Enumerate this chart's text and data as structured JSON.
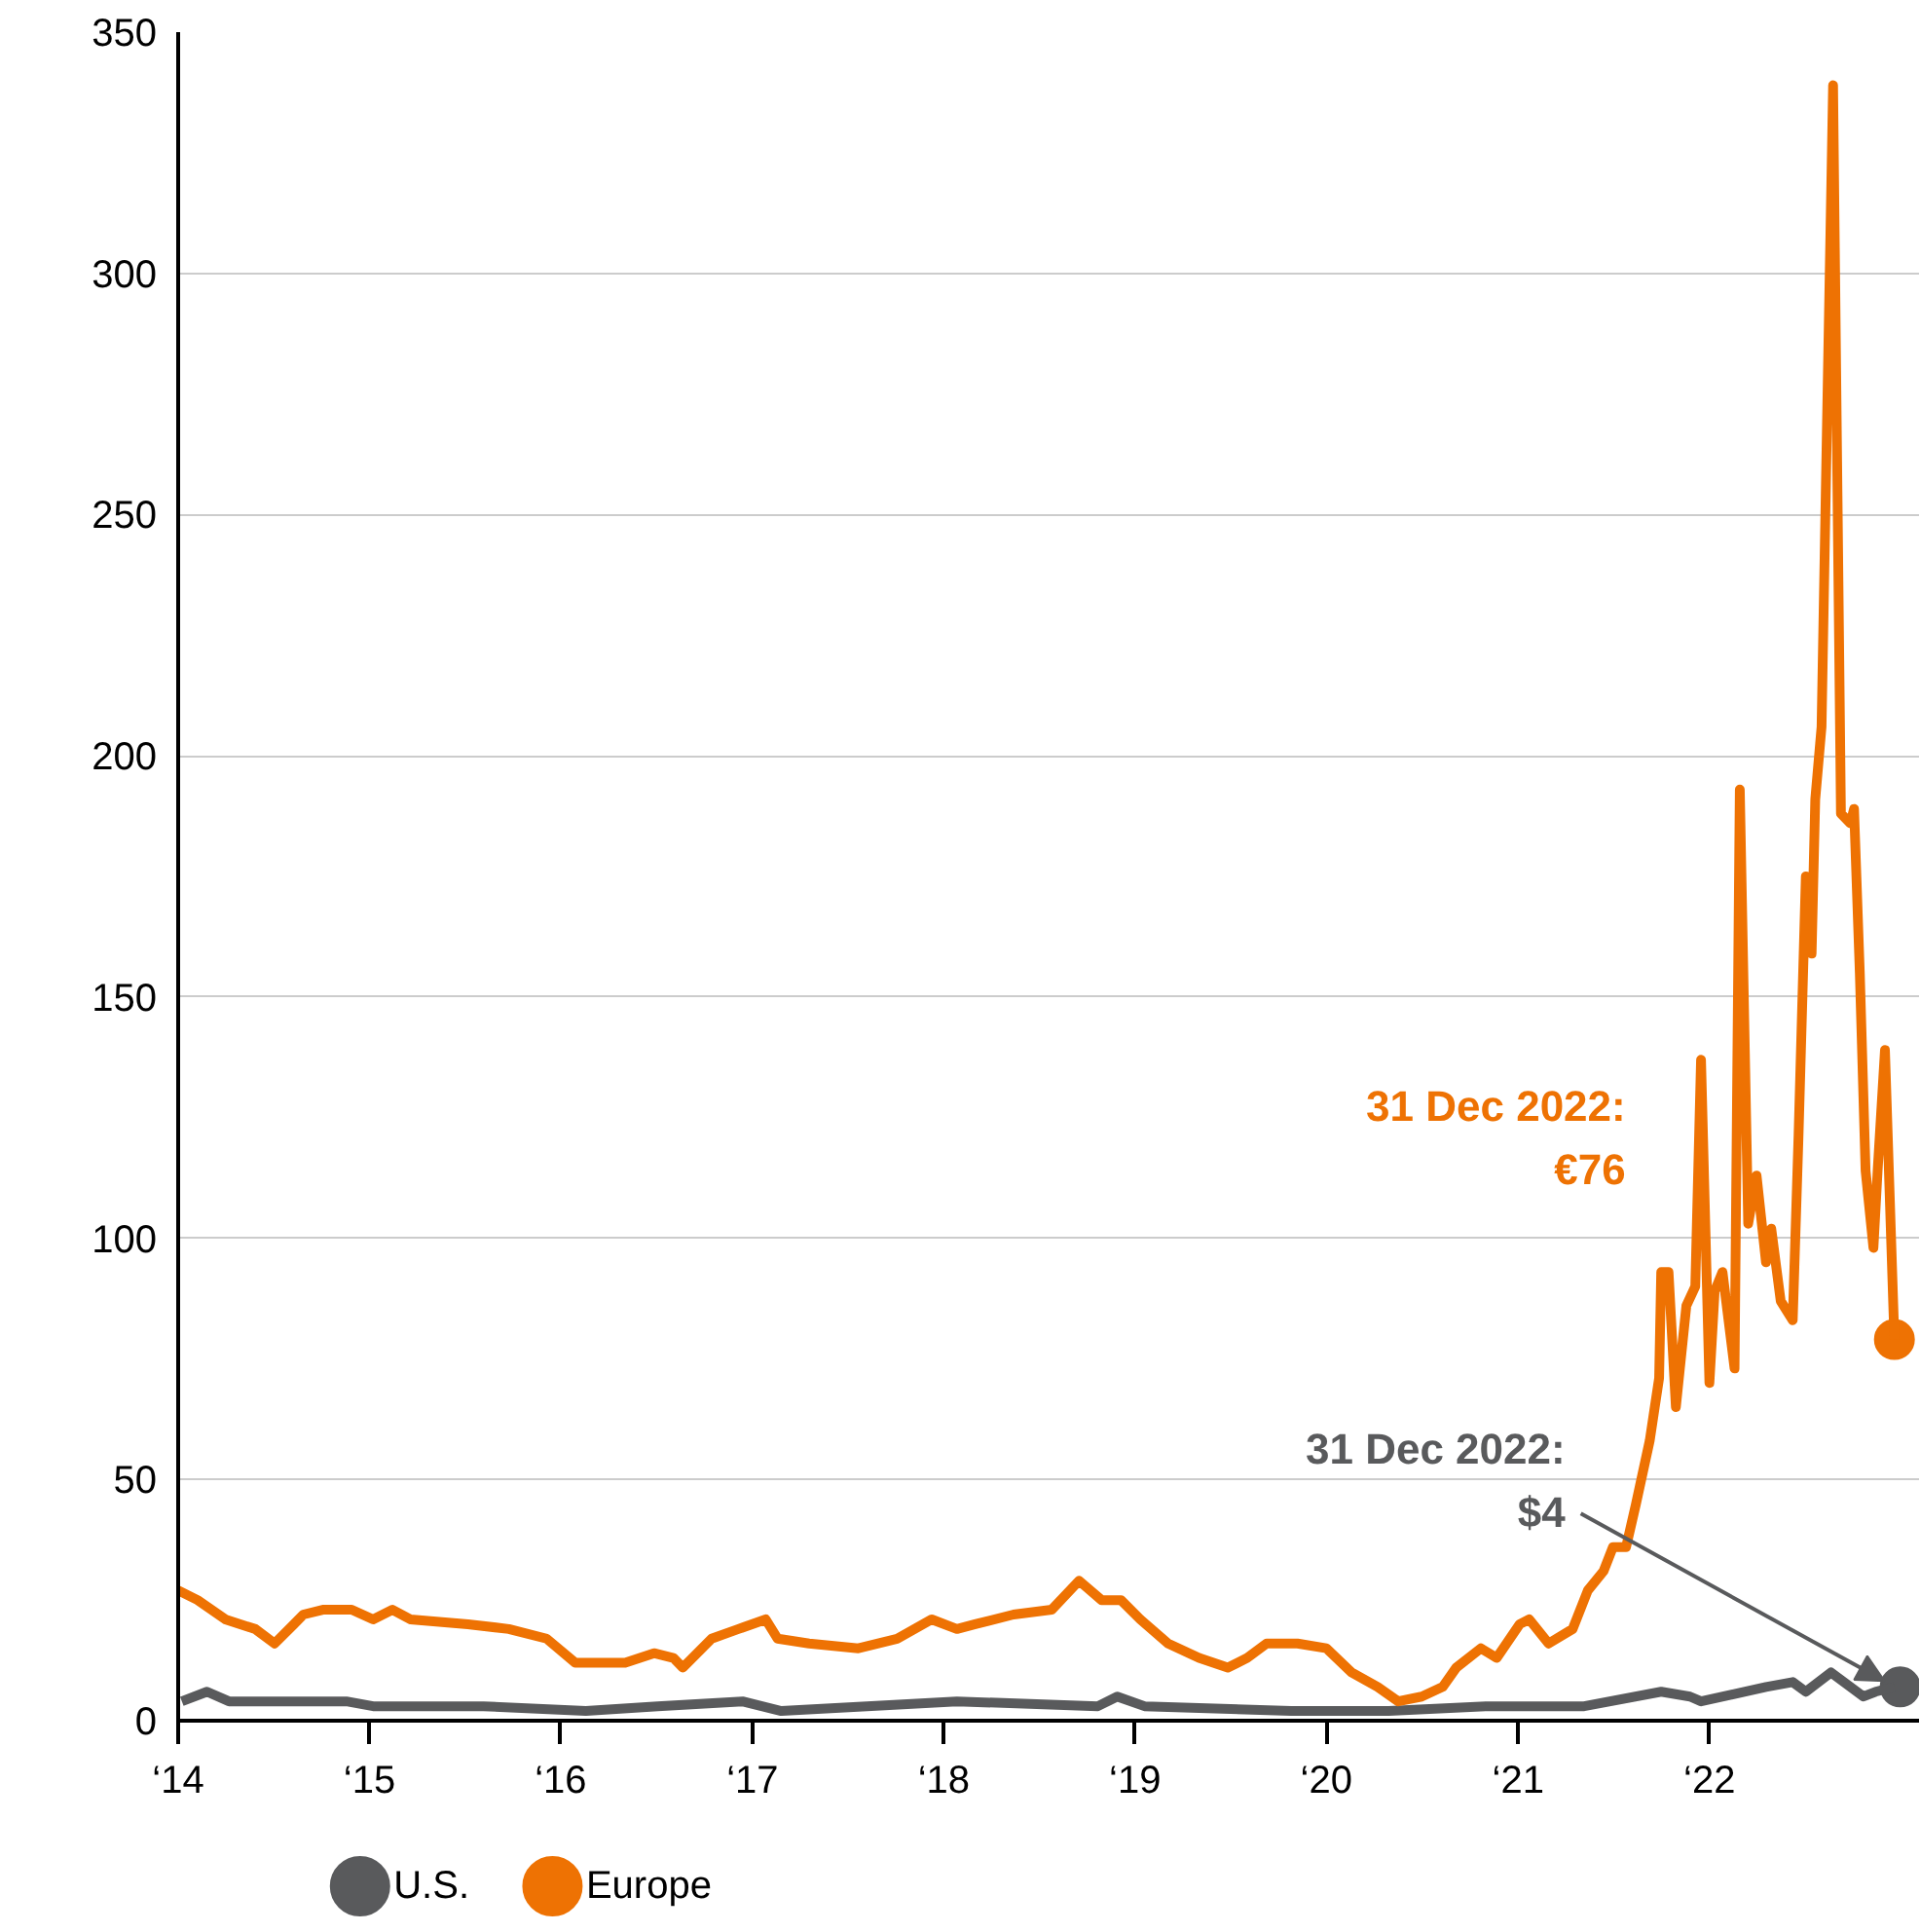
{
  "chart_data": {
    "type": "line",
    "xlim": [
      "2014-01-01",
      "2023-02-05"
    ],
    "xticks": [
      {
        "value": "2014",
        "label": "‘14"
      },
      {
        "value": "2015",
        "label": "‘15"
      },
      {
        "value": "2016",
        "label": "‘16"
      },
      {
        "value": "2017",
        "label": "‘17"
      },
      {
        "value": "2018",
        "label": "‘18"
      },
      {
        "value": "2019",
        "label": "‘19"
      },
      {
        "value": "2020",
        "label": "‘20"
      },
      {
        "value": "2021",
        "label": "‘21"
      },
      {
        "value": "2022",
        "label": "‘22"
      }
    ],
    "ylim": [
      0,
      350
    ],
    "yticks": [
      0,
      50,
      100,
      150,
      200,
      250,
      300,
      350
    ],
    "grid": "y",
    "legend": "bottom left",
    "line_style": "solid",
    "series": [
      {
        "name": "U.S.",
        "color": "#595a5c",
        "x": [
          "2014-01-08",
          "2014-02-25",
          "2014-04-08",
          "2014-07-30",
          "2014-11-18",
          "2015-01-08",
          "2015-08-07",
          "2016-02-18",
          "2016-07-04",
          "2016-12-13",
          "2017-02-25",
          "2018-01-26",
          "2018-10-22",
          "2018-11-28",
          "2019-01-19",
          "2019-10-26",
          "2020-03-02",
          "2020-04-29",
          "2020-11-03",
          "2021-05-07",
          "2021-10-01",
          "2021-11-25",
          "2021-12-16",
          "2022-04-19",
          "2022-06-09",
          "2022-07-04",
          "2022-08-21",
          "2022-10-22",
          "2022-11-14",
          "2022-12-20"
        ],
        "values": [
          4,
          6,
          4,
          4,
          4,
          3,
          3,
          2,
          3,
          4,
          2,
          4,
          3,
          5,
          3,
          2,
          2,
          2,
          3,
          3,
          6,
          5,
          4,
          7,
          8,
          6,
          10,
          5,
          6,
          7
        ]
      },
      {
        "name": "Europe",
        "color": "#ee7203",
        "x": [
          "2014-01-01",
          "2014-02-07",
          "2014-04-01",
          "2014-05-28",
          "2014-07-04",
          "2014-08-10",
          "2014-08-28",
          "2014-10-04",
          "2014-11-28",
          "2015-01-08",
          "2015-02-14",
          "2015-03-20",
          "2015-07-08",
          "2015-09-24",
          "2015-12-05",
          "2016-01-29",
          "2016-05-03",
          "2016-06-27",
          "2016-08-03",
          "2016-08-21",
          "2016-10-15",
          "2016-12-05",
          "2017-01-26",
          "2017-02-18",
          "2017-04-19",
          "2017-07-22",
          "2017-10-04",
          "2017-12-09",
          "2018-01-26",
          "2018-03-02",
          "2018-05-14",
          "2018-07-26",
          "2018-09-16",
          "2018-10-29",
          "2018-12-05",
          "2019-01-11",
          "2019-03-05",
          "2019-05-03",
          "2019-06-27",
          "2019-08-03",
          "2019-09-09",
          "2019-11-07",
          "2020-01-01",
          "2020-02-18",
          "2020-04-08",
          "2020-05-17",
          "2020-07-01",
          "2020-08-10",
          "2020-09-05",
          "2020-10-22",
          "2020-11-21",
          "2021-01-04",
          "2021-01-22",
          "2021-02-28",
          "2021-04-15",
          "2021-05-14",
          "2021-06-13",
          "2021-07-01",
          "2021-07-26",
          "2021-08-14",
          "2021-09-09",
          "2021-09-27",
          "2021-10-01",
          "2021-10-15",
          "2021-10-29",
          "2021-11-18",
          "2021-12-05",
          "2021-12-16",
          "2022-01-01",
          "2022-01-11",
          "2022-01-26",
          "2022-02-18",
          "2022-02-28",
          "2022-03-16",
          "2022-04-01",
          "2022-04-19",
          "2022-04-29",
          "2022-05-17",
          "2022-06-09",
          "2022-06-20",
          "2022-07-04",
          "2022-07-15",
          "2022-07-22",
          "2022-08-03",
          "2022-08-25",
          "2022-09-09",
          "2022-09-27",
          "2022-10-04",
          "2022-10-15",
          "2022-10-26",
          "2022-11-10",
          "2022-11-18",
          "2022-12-02",
          "2022-12-20"
        ],
        "values": [
          27,
          25,
          21,
          19,
          16,
          20,
          22,
          23,
          23,
          21,
          23,
          21,
          20,
          19,
          17,
          12,
          12,
          14,
          13,
          11,
          17,
          19,
          21,
          17,
          16,
          15,
          17,
          21,
          19,
          20,
          22,
          23,
          29,
          25,
          25,
          21,
          16,
          13,
          11,
          13,
          16,
          16,
          15,
          10,
          7,
          4,
          5,
          7,
          11,
          15,
          13,
          20,
          21,
          16,
          19,
          27,
          31,
          36,
          36,
          45,
          58,
          71,
          93,
          93,
          65,
          86,
          90,
          137,
          70,
          89,
          93,
          73,
          193,
          103,
          113,
          95,
          102,
          87,
          83,
          121,
          175,
          159,
          191,
          206,
          339,
          188,
          186,
          189,
          155,
          114,
          98,
          114,
          139,
          79
        ]
      }
    ],
    "annotations": [
      "31 Dec 2022:\n€76",
      {
        "text": "31 Dec 2022:\n$4",
        "x": "2022-12-31",
        "y": 7
      }
    ]
  }
}
